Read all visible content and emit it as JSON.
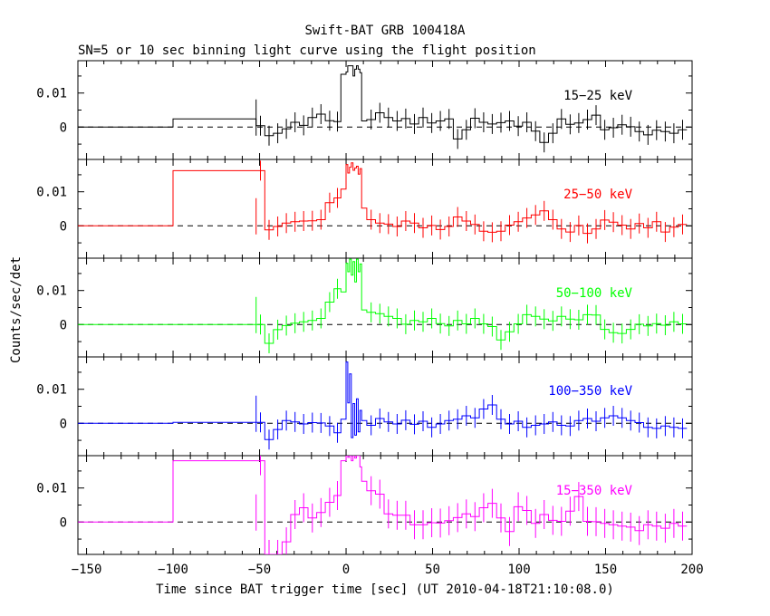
{
  "header": {
    "title": "Swift-BAT GRB 100418A",
    "subtitle": "SN=5 or 10 sec binning light curve using the flight position"
  },
  "axes": {
    "ylabel": "Counts/sec/det",
    "xlabel": "Time since BAT trigger time [sec] (UT 2010-04-18T21:10:08.0)",
    "x_ticklabels": [
      "−150",
      "−100",
      "−50",
      "0",
      "50",
      "100",
      "150",
      "200"
    ],
    "y_ticklabels": [
      "0.01",
      "0"
    ]
  },
  "chart_data": {
    "type": "line",
    "title": "Swift-BAT GRB 100418A",
    "subtitle": "SN=5 or 10 sec binning light curve using the flight position",
    "xlabel": "Time since BAT trigger time [sec] (UT 2010-04-18T21:10:08.0)",
    "ylabel": "Counts/sec/det",
    "xlim": [
      -155,
      200
    ],
    "ylim": [
      -0.0095,
      0.0195
    ],
    "x_ticks": [
      -150,
      -100,
      -50,
      0,
      50,
      100,
      150,
      200
    ],
    "y_ticks": [
      0,
      0.01
    ],
    "grid": false,
    "baseline": 0,
    "bin_edges": [
      -155,
      -100,
      -52,
      -47,
      -42,
      -37,
      -32,
      -27,
      -22,
      -17,
      -12,
      -7,
      -3,
      0,
      1,
      2,
      3,
      4,
      5,
      6,
      7,
      8,
      9,
      12,
      17,
      22,
      27,
      32,
      37,
      42,
      47,
      52,
      57,
      62,
      67,
      72,
      77,
      82,
      87,
      92,
      97,
      102,
      107,
      112,
      117,
      122,
      127,
      132,
      137,
      142,
      147,
      152,
      157,
      162,
      167,
      172,
      177,
      182,
      187,
      192,
      197
    ],
    "series": [
      {
        "name": "15-25 keV",
        "color": "#000000",
        "values": [
          0,
          0.0024,
          0.0004,
          -0.0025,
          -0.0018,
          -0.0005,
          0.0014,
          0.0005,
          0.0028,
          0.0038,
          0.0019,
          0.0016,
          0.0155,
          0.0162,
          0.018,
          0.018,
          0.018,
          0.015,
          0.017,
          0.018,
          0.017,
          0.016,
          0.0018,
          0.0022,
          0.0042,
          0.0028,
          0.0018,
          0.0025,
          0.0009,
          0.0028,
          0.0012,
          0.0018,
          0.0024,
          -0.0035,
          -0.0008,
          0.0026,
          0.0014,
          0.0009,
          0.0013,
          0.0018,
          0.0003,
          0.0014,
          -0.0012,
          -0.0045,
          -0.0018,
          0.0024,
          0.0008,
          0.0012,
          0.0022,
          0.0035,
          -0.0008,
          -0.0002,
          0.0007,
          0.0001,
          -0.0013,
          -0.0023,
          -0.0009,
          -0.0013,
          -0.0018,
          -0.0008
        ]
      },
      {
        "name": "25-50 keV",
        "color": "#ff0000",
        "values": [
          0,
          0.0162,
          0.0162,
          -0.0012,
          -0.0002,
          0.0008,
          0.0012,
          0.0014,
          0.0015,
          0.0018,
          0.0068,
          0.0082,
          0.0108,
          0.018,
          0.0155,
          0.0172,
          0.0185,
          0.0163,
          0.017,
          0.0175,
          0.0152,
          0.0168,
          0.0052,
          0.0018,
          0.0008,
          0.0005,
          -0.0002,
          0.0014,
          0.0008,
          -0.0006,
          0.0001,
          -0.0011,
          -0.0002,
          0.0026,
          0.0014,
          0.0004,
          -0.0016,
          -0.0019,
          -0.0016,
          0.0002,
          0.0012,
          0.0023,
          0.0032,
          0.0044,
          0.0018,
          -0.0009,
          -0.0018,
          0.0001,
          -0.0022,
          -0.0009,
          0.0017,
          0.0011,
          0.0002,
          -0.0009,
          0.0007,
          -0.0006,
          0.0012,
          -0.0018,
          -0.0004,
          0.0004
        ]
      },
      {
        "name": "50-100 keV",
        "color": "#00ff00",
        "values": [
          0,
          0,
          0,
          -0.0055,
          -0.0015,
          -0.0003,
          0.0004,
          0.0008,
          0.0012,
          0.0018,
          0.0066,
          0.0105,
          0.0096,
          0.018,
          0.0155,
          0.0192,
          0.0145,
          0.0185,
          0.0125,
          0.0192,
          0.0155,
          0.0178,
          0.0043,
          0.0036,
          0.0032,
          0.0024,
          0.0018,
          0.0001,
          0.0012,
          0.0008,
          0.0018,
          0.0003,
          -0.0004,
          0.0012,
          0.0002,
          0.0018,
          0.0002,
          -0.0006,
          -0.0045,
          -0.0021,
          0.0002,
          0.0029,
          0.0024,
          0.0016,
          0.0011,
          0.0024,
          0.0016,
          0.0014,
          0.0029,
          0.0028,
          -0.0014,
          -0.0024,
          -0.0026,
          -0.0014,
          0.0001,
          -0.0004,
          0.0003,
          -0.0002,
          0.0008,
          0.0002
        ]
      },
      {
        "name": "100-350 keV",
        "color": "#0000ff",
        "values": [
          0,
          0.0003,
          0.0003,
          -0.0048,
          -0.0018,
          0.0008,
          0.0004,
          -0.0002,
          0.0002,
          0.0001,
          -0.0008,
          -0.0028,
          0.0012,
          0.018,
          0.006,
          0.0145,
          -0.0042,
          0.0058,
          -0.0035,
          0.0072,
          -0.0025,
          0.0038,
          0.0008,
          -0.0006,
          0.0014,
          0.0004,
          -0.0002,
          0.0009,
          -0.0003,
          0.0006,
          -0.0012,
          -0.0002,
          0.0008,
          0.0012,
          0.0022,
          0.0016,
          0.0042,
          0.0054,
          0.0012,
          -0.0002,
          0.0006,
          -0.0012,
          -0.0006,
          -0.0002,
          0.0004,
          -0.0006,
          -0.0008,
          0.0008,
          0.0014,
          0.0006,
          0.0016,
          0.0022,
          0.0016,
          0.0008,
          0.0002,
          -0.0012,
          -0.0015,
          -0.0008,
          -0.0012,
          -0.0015
        ]
      },
      {
        "name": "15-350 keV",
        "color": "#ff00ff",
        "values": [
          0,
          0.018,
          0.018,
          -0.012,
          -0.012,
          -0.0058,
          0.0022,
          0.0042,
          0.0012,
          0.0028,
          0.0058,
          0.0078,
          0.018,
          0.0195,
          0.019,
          0.0195,
          0.018,
          0.0195,
          0.0188,
          0.0195,
          0.0195,
          0.0162,
          0.012,
          0.0092,
          0.0082,
          0.0024,
          0.002,
          0.002,
          -0.0008,
          -0.0008,
          -0.0002,
          -0.0003,
          0.0004,
          0.0013,
          0.0024,
          0.0016,
          0.0042,
          0.0055,
          0.0012,
          -0.0028,
          0.0045,
          0.0034,
          -0.0004,
          0.0022,
          0.0005,
          0.0002,
          0.0032,
          0.0075,
          0.0002,
          0.0001,
          -0.0004,
          -0.0008,
          -0.0012,
          -0.0015,
          -0.0025,
          -0.0008,
          -0.0012,
          -0.0018,
          -0.0004,
          -0.0012
        ]
      }
    ]
  }
}
